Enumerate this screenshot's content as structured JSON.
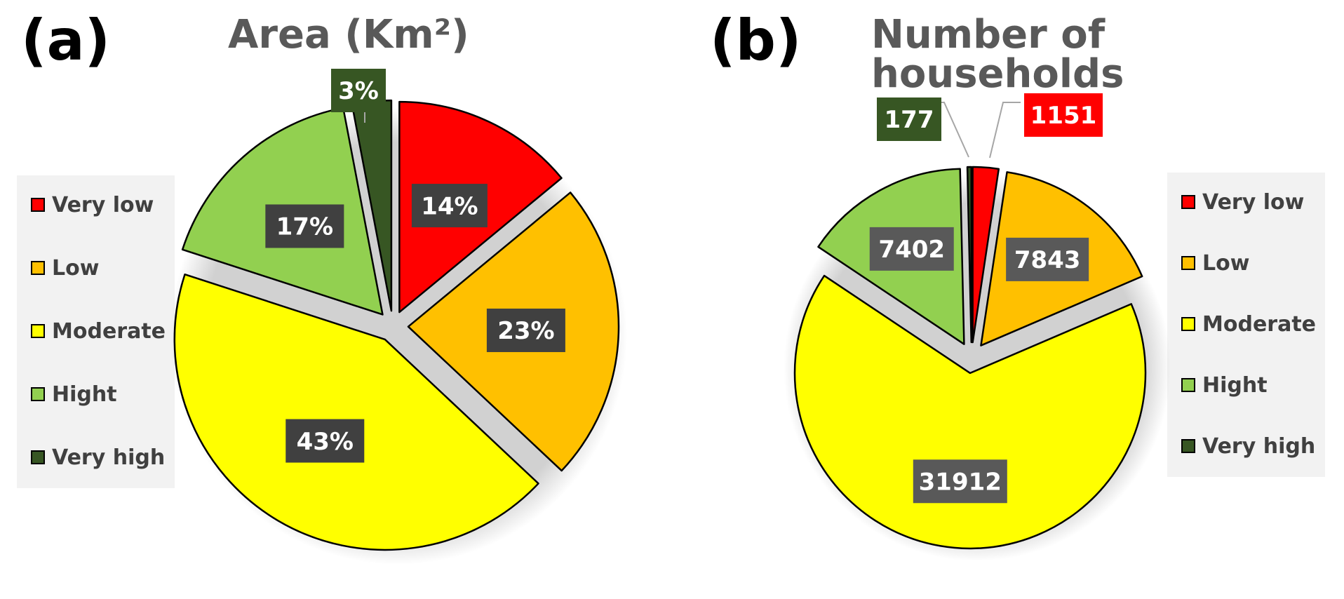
{
  "panels": [
    {
      "letter": "(a)",
      "title": "Area (Km²)"
    },
    {
      "letter": "(b)",
      "title": "Number of households"
    }
  ],
  "legend": [
    {
      "label": "Very low",
      "color": "#ff0000"
    },
    {
      "label": "Low",
      "color": "#ffc000"
    },
    {
      "label": "Moderate",
      "color": "#ffff00"
    },
    {
      "label": "Hight",
      "color": "#92d050"
    },
    {
      "label": "Very high",
      "color": "#375623"
    }
  ],
  "chart_data": [
    {
      "type": "pie",
      "title": "Area (Km²)",
      "categories": [
        "Very low",
        "Low",
        "Moderate",
        "Hight",
        "Very high"
      ],
      "values": [
        14,
        23,
        43,
        17,
        3
      ],
      "unit": "%",
      "data_labels": [
        "14%",
        "23%",
        "43%",
        "17%",
        "3%"
      ],
      "colors": [
        "#ff0000",
        "#ffc000",
        "#ffff00",
        "#92d050",
        "#375623"
      ],
      "legend_placement": "left",
      "exploded": true
    },
    {
      "type": "pie",
      "title": "Number of households",
      "categories": [
        "Very low",
        "Low",
        "Moderate",
        "Hight",
        "Very high"
      ],
      "values": [
        1151,
        7843,
        31912,
        7402,
        177
      ],
      "data_labels": [
        "1151",
        "7843",
        "31912",
        "7402",
        "177"
      ],
      "colors": [
        "#ff0000",
        "#ffc000",
        "#ffff00",
        "#92d050",
        "#375623"
      ],
      "legend_placement": "right",
      "exploded": true
    }
  ]
}
